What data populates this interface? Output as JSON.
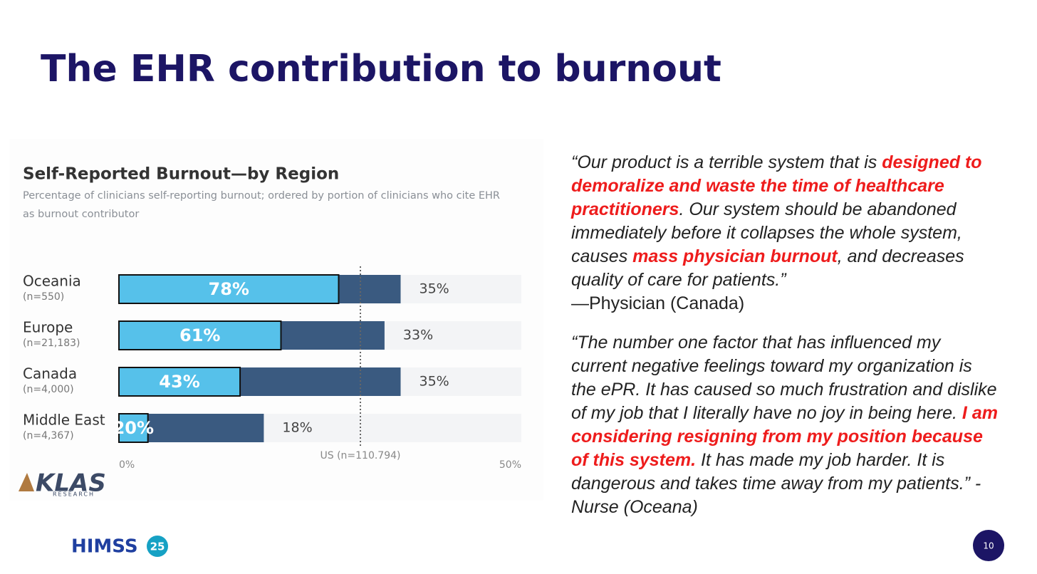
{
  "title": "The EHR contribution to burnout",
  "chart_data": {
    "type": "bar",
    "title": "Self-Reported Burnout—by Region",
    "subtitle": "Percentage of clinicians self-reporting burnout; ordered by portion of clinicians who cite EHR as burnout contributor",
    "categories": [
      "Oceania",
      "Europe",
      "Canada",
      "Middle East"
    ],
    "category_notes": [
      "(n=550)",
      "(n=21,183)",
      "(n=4,000)",
      "(n=4,367)"
    ],
    "values": [
      35,
      33,
      35,
      18
    ],
    "value_labels": [
      "35%",
      "33%",
      "35%",
      "18%"
    ],
    "color": "#3a5a80",
    "ehr_share": [
      78,
      61,
      43,
      20
    ],
    "ehr_share_labels": [
      "78%",
      "61%",
      "43%",
      "20%"
    ],
    "ehr_color": "#56c1ea",
    "track_color": "#f3f4f6",
    "xlim": [
      0,
      50
    ],
    "xticks": [
      {
        "value": 0,
        "label": "0%"
      },
      {
        "value": 50,
        "label": "50%"
      }
    ],
    "reference_line": {
      "value": 30,
      "label": "US (n=110.794)"
    },
    "source": {
      "name": "KLAS",
      "sub": "RESEARCH"
    }
  },
  "quotes": [
    {
      "segments": [
        {
          "text": "“Our product is a terrible system that is "
        },
        {
          "text": "designed to demoralize and waste the time of healthcare practitioners",
          "highlight": true
        },
        {
          "text": ". Our system should be abandoned immediately before it collapses the whole system, causes "
        },
        {
          "text": "mass physician burnout",
          "highlight": true
        },
        {
          "text": ", and decreases quality of care for patients.”"
        }
      ],
      "attribution": "—Physician (Canada)"
    },
    {
      "segments": [
        {
          "text": "“The number one factor that has influenced my current negative feelings toward my organization is the ePR. It has caused so much frustration and dislike of my job that I literally have no joy in being here. "
        },
        {
          "text": "I am considering resigning from my position because of this system.",
          "highlight": true
        },
        {
          "text": " It has made my job harder. It is dangerous and takes time away from my patients.”  -Nurse (Oceana)"
        }
      ]
    }
  ],
  "footer": {
    "brand": "HIMSS",
    "edition": "25",
    "page": "10"
  }
}
